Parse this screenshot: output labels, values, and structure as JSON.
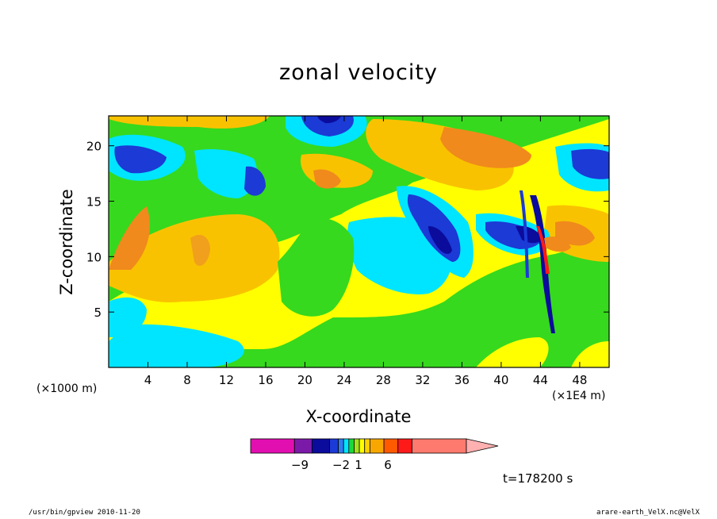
{
  "chart_data": {
    "type": "heatmap",
    "title": "zonal velocity",
    "xlabel": "X-coordinate",
    "ylabel": "Z-coordinate",
    "x_unit_label": "(×1000 m)",
    "x_scale_label": "(×1E4 m)",
    "xlim": [
      0,
      51
    ],
    "ylim": [
      0,
      22.7
    ],
    "x_ticks": [
      4,
      8,
      12,
      16,
      20,
      24,
      28,
      32,
      36,
      40,
      44,
      48
    ],
    "y_ticks": [
      5,
      10,
      15,
      20
    ],
    "colorbar": {
      "labels": [
        {
          "text": "−9",
          "value": -9
        },
        {
          "text": "−2",
          "value": -2
        },
        {
          "text": "1",
          "value": 1
        },
        {
          "text": "6",
          "value": 6
        }
      ],
      "colors": [
        "#e20fb0",
        "#7b1aa8",
        "#0b0b9c",
        "#1b3ad6",
        "#2f7cf0",
        "#00e5ff",
        "#1bd93a",
        "#a2e21a",
        "#ffff00",
        "#ffd200",
        "#f7a700",
        "#ff5a00",
        "#ff1a1a",
        "#ff7a6e",
        "#ffb0b0"
      ]
    },
    "annotation": "t=178200 s"
  },
  "footer": {
    "left": "/usr/bin/gpview   2010-11-20",
    "right": "arare-earth_VelX.nc@VelX"
  }
}
